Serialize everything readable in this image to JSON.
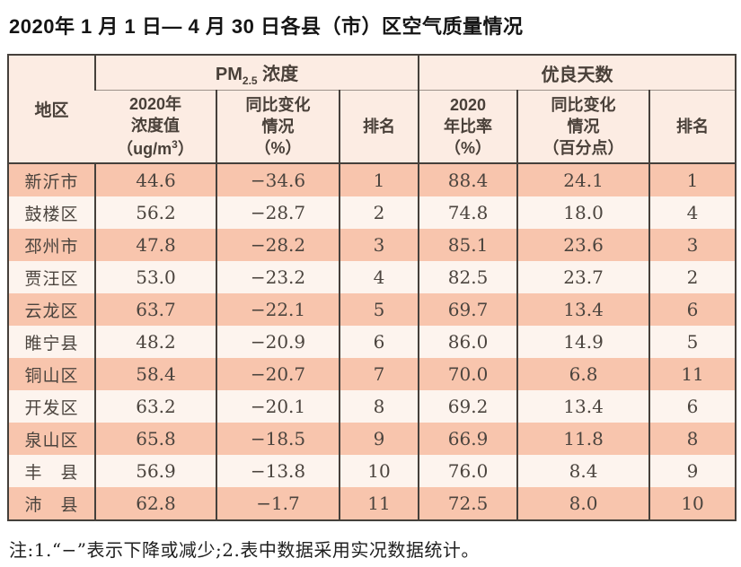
{
  "title": "2020年 1 月 1 日— 4 月 30 日各县（市）区空气质量情况",
  "colors": {
    "row_odd_bg": "#f8c5ad",
    "row_even_bg": "#fdf4ee",
    "header_bg": "#fcece3",
    "border_dark": "#45403b",
    "header_divider_gray": "#9b9189",
    "text_dark": "#4b443e"
  },
  "table": {
    "region_header": "地区",
    "pm_group": {
      "pre": "PM",
      "sub": "2.5",
      "post": " 浓度"
    },
    "days_group": "优良天数",
    "sub": {
      "pm_value": {
        "l1": "2020年",
        "l2": "浓度值",
        "l3a": "（ug/m",
        "l3sup": "3",
        "l3b": "）"
      },
      "pm_change": "同比变化\n情况\n（%）",
      "pm_rank": "排名",
      "days_ratio": "2020\n年比率\n（%）",
      "days_change": "同比变化\n情况\n（百分点）",
      "days_rank": "排名"
    },
    "rows": [
      [
        "新沂市",
        "44.6",
        "−34.6",
        "1",
        "88.4",
        "24.1",
        "1"
      ],
      [
        "鼓楼区",
        "56.2",
        "−28.7",
        "2",
        "74.8",
        "18.0",
        "4"
      ],
      [
        "邳州市",
        "47.8",
        "−28.2",
        "3",
        "85.1",
        "23.6",
        "3"
      ],
      [
        "贾汪区",
        "53.0",
        "−23.2",
        "4",
        "82.5",
        "23.7",
        "2"
      ],
      [
        "云龙区",
        "63.7",
        "−22.1",
        "5",
        "69.7",
        "13.4",
        "6"
      ],
      [
        "睢宁县",
        "48.2",
        "−20.9",
        "6",
        "86.0",
        "14.9",
        "5"
      ],
      [
        "铜山区",
        "58.4",
        "−20.7",
        "7",
        "70.0",
        "6.8",
        "11"
      ],
      [
        "开发区",
        "63.2",
        "−20.1",
        "8",
        "69.2",
        "13.4",
        "6"
      ],
      [
        "泉山区",
        "65.8",
        "−18.5",
        "9",
        "66.9",
        "11.8",
        "8"
      ],
      [
        "丰　县",
        "56.9",
        "−13.8",
        "10",
        "76.0",
        "8.4",
        "9"
      ],
      [
        "沛　县",
        "62.8",
        "−1.7",
        "11",
        "72.5",
        "8.0",
        "10"
      ]
    ]
  },
  "note": "注:1.“−”表示下降或减少;2.表中数据采用实况数据统计。"
}
